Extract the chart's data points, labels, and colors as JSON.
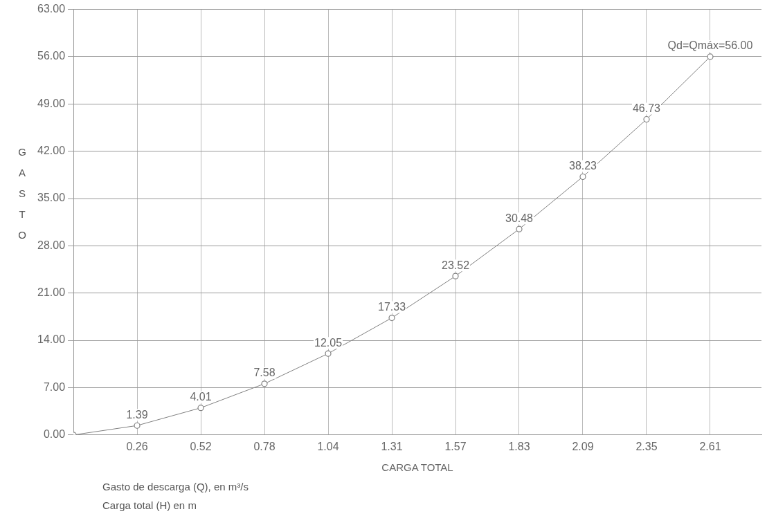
{
  "chart_data": {
    "type": "line",
    "xlabel": "CARGA TOTAL",
    "ylabel": "GASTO",
    "x": [
      0,
      0.261,
      0.522,
      0.783,
      1.044,
      1.305,
      1.566,
      1.827,
      2.088,
      2.349,
      2.61
    ],
    "series": [
      {
        "color": "#808080",
        "values": [
          0,
          1.39,
          4.01,
          7.58,
          12.05,
          17.33,
          23.52,
          30.48,
          38.23,
          46.73,
          56.0
        ],
        "value_labels": [
          null,
          "1.39",
          "4.01",
          "7.58",
          "12.05",
          "17.33",
          "23.52",
          "30.48",
          "38.23",
          "46.73",
          "Qd=Qmáx=56.00"
        ]
      }
    ],
    "xlim": [
      0,
      2.82
    ],
    "xticks": [
      {
        "value": 0.261,
        "label": "0.26"
      },
      {
        "value": 0.522,
        "label": "0.52"
      },
      {
        "value": 0.783,
        "label": "0.78"
      },
      {
        "value": 1.044,
        "label": "1.04"
      },
      {
        "value": 1.305,
        "label": "1.31"
      },
      {
        "value": 1.566,
        "label": "1.57"
      },
      {
        "value": 1.827,
        "label": "1.83"
      },
      {
        "value": 2.088,
        "label": "2.09"
      },
      {
        "value": 2.349,
        "label": "2.35"
      },
      {
        "value": 2.61,
        "label": "2.61"
      }
    ],
    "ylim": [
      0,
      63
    ],
    "yticks": [
      {
        "value": 0,
        "label": "0.00"
      },
      {
        "value": 7,
        "label": "7.00"
      },
      {
        "value": 14,
        "label": "14.00"
      },
      {
        "value": 21,
        "label": "21.00"
      },
      {
        "value": 28,
        "label": "28.00"
      },
      {
        "value": 35,
        "label": "35.00"
      },
      {
        "value": 42,
        "label": "42.00"
      },
      {
        "value": 49,
        "label": "49.00"
      },
      {
        "value": 56,
        "label": "56.00"
      },
      {
        "value": 63,
        "label": "63.00"
      }
    ],
    "grid": true,
    "marker": "circle",
    "line_style": "solid",
    "legend": false,
    "annotations": [
      "Gasto de descarga (Q), en m³/s",
      "Carga total (H) en m"
    ]
  }
}
